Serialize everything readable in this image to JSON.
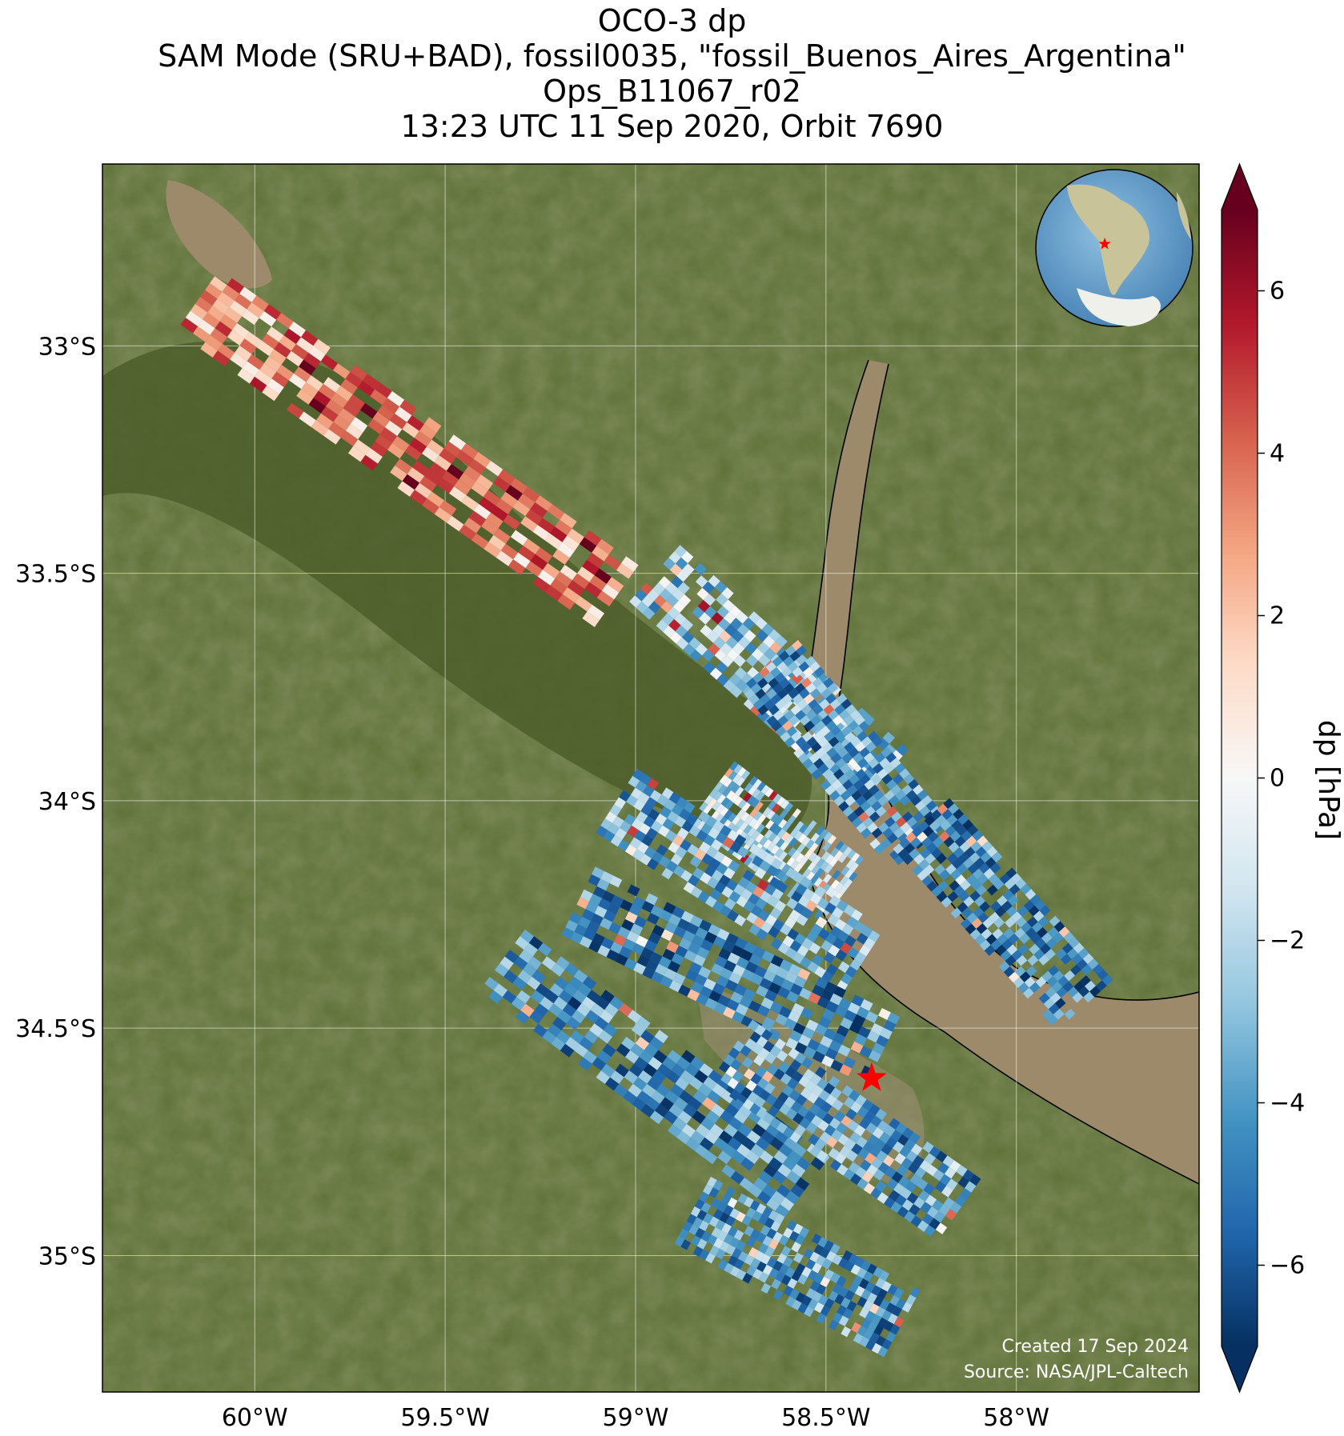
{
  "title": {
    "line1": "OCO-3 dp",
    "line2": "SAM Mode (SRU+BAD), fossil0035, \"fossil_Buenos_Aires_Argentina\"",
    "line3": "Ops_B11067_r02",
    "line4": "13:23 UTC 11 Sep 2020, Orbit 7690"
  },
  "map": {
    "lon_range": [
      -60.4,
      -57.52
    ],
    "lat_range": [
      -35.3,
      -32.6
    ],
    "lon_ticks": [
      {
        "value": -60.0,
        "label": "60°W"
      },
      {
        "value": -59.5,
        "label": "59.5°W"
      },
      {
        "value": -59.0,
        "label": "59°W"
      },
      {
        "value": -58.5,
        "label": "58.5°W"
      },
      {
        "value": -58.0,
        "label": "58°W"
      }
    ],
    "lat_ticks": [
      {
        "value": -33.0,
        "label": "33°S"
      },
      {
        "value": -33.5,
        "label": "33.5°S"
      },
      {
        "value": -34.0,
        "label": "34°S"
      },
      {
        "value": -34.5,
        "label": "34.5°S"
      },
      {
        "value": -35.0,
        "label": "35°S"
      }
    ],
    "grid": true,
    "target": {
      "name": "fossil_Buenos_Aires_Argentina",
      "lon": -58.38,
      "lat": -34.61,
      "color": "#ff0000"
    },
    "inset_globe": {
      "placement": "top-right",
      "target_color": "#ff0000"
    },
    "colors": {
      "land": "#5e6f36",
      "water": "#9c8a6a",
      "delta": "#4e5e2c",
      "star": "#ff0000"
    }
  },
  "colorbar": {
    "label": "dp [hPa]",
    "range": [
      -7,
      7
    ],
    "extend": "both",
    "ticks": [
      {
        "value": 6,
        "label": "6"
      },
      {
        "value": 4,
        "label": "4"
      },
      {
        "value": 2,
        "label": "2"
      },
      {
        "value": 0,
        "label": "0"
      },
      {
        "value": -2,
        "label": "−2"
      },
      {
        "value": -4,
        "label": "−4"
      },
      {
        "value": -6,
        "label": "−6"
      }
    ],
    "colormap": [
      "#053061",
      "#2166ac",
      "#4393c3",
      "#92c5de",
      "#d1e5f0",
      "#f7f7f7",
      "#fddbc7",
      "#f4a582",
      "#d6604d",
      "#b2182b",
      "#67001f"
    ]
  },
  "swaths": [
    {
      "lon1": -60.15,
      "lat1": -32.9,
      "lon2": -59.05,
      "lat2": -33.55,
      "mean_dp": 3.0
    },
    {
      "lon1": -58.95,
      "lat1": -33.5,
      "lon2": -58.35,
      "lat2": -33.95,
      "mean_dp": -2.5
    },
    {
      "lon1": -58.8,
      "lat1": -33.98,
      "lon2": -58.45,
      "lat2": -34.2,
      "mean_dp": -2.0
    },
    {
      "lon1": -59.05,
      "lat1": -34.0,
      "lon2": -58.4,
      "lat2": -34.35,
      "mean_dp": -3.5
    },
    {
      "lon1": -58.65,
      "lat1": -33.7,
      "lon2": -58.25,
      "lat2": -34.1,
      "mean_dp": -4.0
    },
    {
      "lon1": -59.15,
      "lat1": -34.22,
      "lon2": -58.35,
      "lat2": -34.55,
      "mean_dp": -4.5
    },
    {
      "lon1": -59.35,
      "lat1": -34.35,
      "lon2": -58.55,
      "lat2": -34.85,
      "mean_dp": -4.5
    },
    {
      "lon1": -58.75,
      "lat1": -34.55,
      "lon2": -58.15,
      "lat2": -34.9,
      "mean_dp": -4.0
    },
    {
      "lon1": -58.85,
      "lat1": -34.9,
      "lon2": -58.3,
      "lat2": -35.15,
      "mean_dp": -4.0
    },
    {
      "lon1": -58.25,
      "lat1": -34.05,
      "lon2": -57.82,
      "lat2": -34.45,
      "mean_dp": -4.5
    }
  ],
  "credit": {
    "line1": "Created 17 Sep 2024",
    "line2": "Source: NASA/JPL-Caltech"
  }
}
